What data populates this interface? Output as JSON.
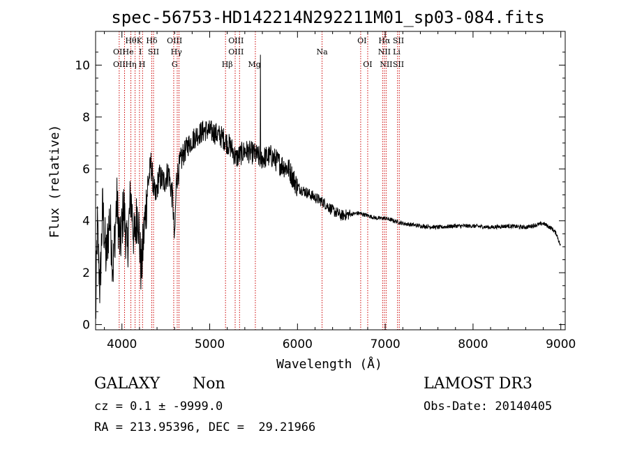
{
  "chart_data": {
    "type": "line",
    "title": "spec-56753-HD142214N292211M01_sp03-084.fits",
    "xlabel": "Wavelength (Å)",
    "ylabel": "Flux (relative)",
    "xlim": [
      3700,
      9050
    ],
    "ylim": [
      -0.2,
      11.3
    ],
    "x_ticks": [
      4000,
      5000,
      6000,
      7000,
      8000,
      9000
    ],
    "y_ticks": [
      0,
      2,
      4,
      6,
      8,
      10
    ],
    "line_color": "#000000",
    "marker_color": "#cc0000",
    "spectrum_control_points": [
      [
        3700,
        0.1
      ],
      [
        3720,
        3.8
      ],
      [
        3750,
        1.3
      ],
      [
        3780,
        4.5
      ],
      [
        3820,
        2.5
      ],
      [
        3860,
        4.2
      ],
      [
        3900,
        2.2
      ],
      [
        3940,
        4.8
      ],
      [
        3980,
        3.0
      ],
      [
        4020,
        4.6
      ],
      [
        4060,
        2.8
      ],
      [
        4100,
        5.0
      ],
      [
        4140,
        3.2
      ],
      [
        4180,
        4.5
      ],
      [
        4220,
        2.0
      ],
      [
        4250,
        3.5
      ],
      [
        4290,
        5.2
      ],
      [
        4330,
        6.2
      ],
      [
        4380,
        4.8
      ],
      [
        4420,
        5.7
      ],
      [
        4480,
        5.5
      ],
      [
        4530,
        5.9
      ],
      [
        4580,
        4.8
      ],
      [
        4600,
        3.1
      ],
      [
        4620,
        5.6
      ],
      [
        4680,
        6.4
      ],
      [
        4750,
        6.9
      ],
      [
        4850,
        7.3
      ],
      [
        4950,
        7.5
      ],
      [
        5050,
        7.4
      ],
      [
        5150,
        7.2
      ],
      [
        5250,
        6.8
      ],
      [
        5300,
        6.4
      ],
      [
        5400,
        6.7
      ],
      [
        5500,
        6.6
      ],
      [
        5580,
        6.4
      ],
      [
        5700,
        6.5
      ],
      [
        5800,
        6.2
      ],
      [
        5900,
        6.0
      ],
      [
        6000,
        5.3
      ],
      [
        6100,
        5.1
      ],
      [
        6200,
        4.9
      ],
      [
        6300,
        4.7
      ],
      [
        6400,
        4.4
      ],
      [
        6500,
        4.2
      ],
      [
        6600,
        4.25
      ],
      [
        6700,
        4.3
      ],
      [
        6800,
        4.2
      ],
      [
        6900,
        4.1
      ],
      [
        7000,
        4.1
      ],
      [
        7100,
        4.0
      ],
      [
        7200,
        3.9
      ],
      [
        7400,
        3.8
      ],
      [
        7600,
        3.75
      ],
      [
        7800,
        3.8
      ],
      [
        8000,
        3.8
      ],
      [
        8200,
        3.75
      ],
      [
        8400,
        3.8
      ],
      [
        8600,
        3.75
      ],
      [
        8800,
        3.9
      ],
      [
        8900,
        3.7
      ],
      [
        8950,
        3.5
      ],
      [
        9000,
        3.0
      ]
    ],
    "spike": {
      "x": 5578,
      "y": 10.4
    },
    "line_markers": [
      {
        "x": 3969,
        "label": "OII",
        "row": 2
      },
      {
        "x": 3969,
        "label": "OII",
        "row": 3
      },
      {
        "x": 4102,
        "label": "Hθ",
        "row": 1
      },
      {
        "x": 4070,
        "label": "He",
        "row": 2
      },
      {
        "x": 4102,
        "label": "Hη",
        "row": 3
      },
      {
        "x": 4200,
        "label": "K",
        "row": 1
      },
      {
        "x": 4210,
        "label": "I",
        "row": 2
      },
      {
        "x": 4230,
        "label": "H",
        "row": 3
      },
      {
        "x": 4340,
        "label": "Hδ",
        "row": 1
      },
      {
        "x": 4360,
        "label": "SII",
        "row": 2
      },
      {
        "x": 4600,
        "label": "OIII",
        "row": 1
      },
      {
        "x": 4620,
        "label": "Hγ",
        "row": 2
      },
      {
        "x": 4600,
        "label": "G",
        "row": 3
      },
      {
        "x": 5300,
        "label": "OIII",
        "row": 1
      },
      {
        "x": 5300,
        "label": "OIII",
        "row": 2
      },
      {
        "x": 5200,
        "label": "Hβ",
        "row": 3
      },
      {
        "x": 5510,
        "label": "Mg",
        "row": 3
      },
      {
        "x": 6280,
        "label": "Na",
        "row": 2
      },
      {
        "x": 6735,
        "label": "OI",
        "row": 1
      },
      {
        "x": 6800,
        "label": "OI",
        "row": 3
      },
      {
        "x": 6990,
        "label": "Hα",
        "row": 1
      },
      {
        "x": 6990,
        "label": "NII",
        "row": 2
      },
      {
        "x": 7010,
        "label": "NII",
        "row": 3
      },
      {
        "x": 7150,
        "label": "SII",
        "row": 1
      },
      {
        "x": 7130,
        "label": "Li",
        "row": 2
      },
      {
        "x": 7150,
        "label": "SII",
        "row": 3
      }
    ],
    "marker_lines_x": [
      3969,
      4030,
      4102,
      4150,
      4200,
      4235,
      4340,
      4360,
      4590,
      4630,
      4650,
      5180,
      5290,
      5340,
      5520,
      6280,
      6720,
      6800,
      6970,
      6990,
      7010,
      7140,
      7160
    ]
  },
  "info": {
    "object_class": "GALAXY",
    "subclass": "Non",
    "survey": "LAMOST DR3",
    "redshift": "cz = 0.1 ± -9999.0",
    "obs_date": "Obs-Date: 20140405",
    "coords": "RA = 213.95396, DEC =  29.21966"
  }
}
